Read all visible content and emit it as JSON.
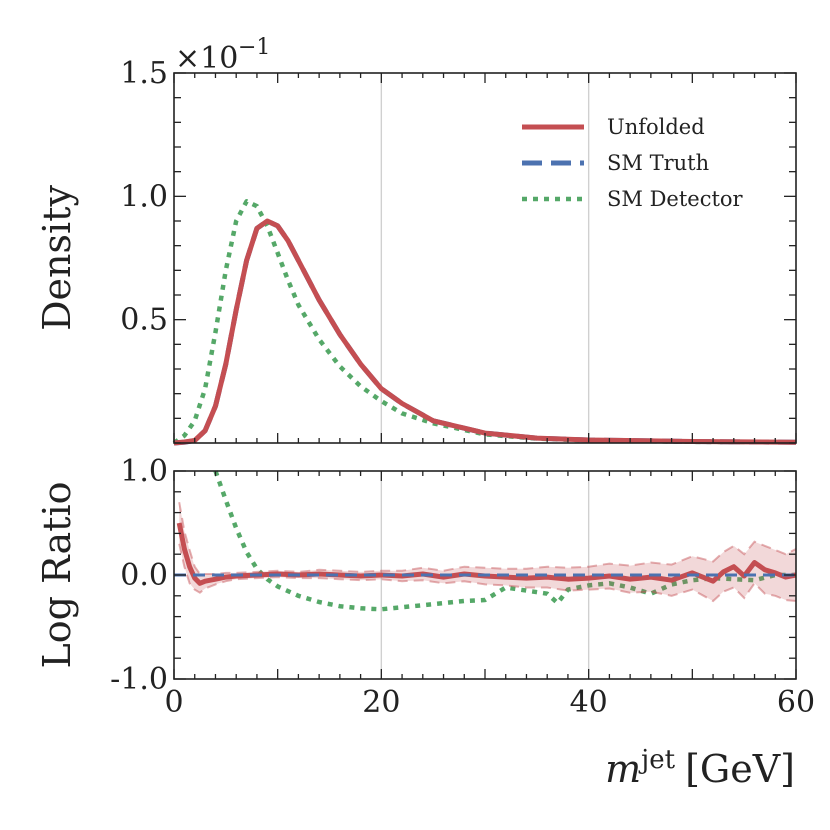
{
  "chart_data": [
    {
      "type": "line",
      "panel": "main",
      "ylabel": "Density",
      "xlim": [
        0,
        60
      ],
      "ylim": [
        0,
        1.5
      ],
      "scale_text": "×10",
      "scale_exponent": "−1",
      "yticks": [
        {
          "value": 0.5,
          "label": "0.5"
        },
        {
          "value": 1.0,
          "label": "1.0"
        },
        {
          "value": 1.5,
          "label": "1.5"
        }
      ],
      "grid_x": [
        20,
        40
      ],
      "legend": {
        "position": "top-right",
        "entries": [
          {
            "label": "Unfolded",
            "color": "#c44e52",
            "style": "solid"
          },
          {
            "label": "SM Truth",
            "color": "#4c72b0",
            "style": "dashed"
          },
          {
            "label": "SM Detector",
            "color": "#55a868",
            "style": "dotted"
          }
        ]
      },
      "series": [
        {
          "name": "SM Truth",
          "color": "#4c72b0",
          "style": "dashed",
          "x": [
            0,
            1,
            2,
            3,
            4,
            5,
            6,
            7,
            8,
            9,
            10,
            11,
            12,
            14,
            16,
            18,
            20,
            22,
            25,
            30,
            35,
            40,
            50,
            60
          ],
          "y": [
            0.0,
            0.003,
            0.01,
            0.05,
            0.15,
            0.32,
            0.54,
            0.74,
            0.87,
            0.9,
            0.88,
            0.82,
            0.74,
            0.58,
            0.44,
            0.32,
            0.22,
            0.16,
            0.09,
            0.04,
            0.02,
            0.012,
            0.006,
            0.003
          ]
        },
        {
          "name": "Unfolded",
          "color": "#c44e52",
          "style": "solid",
          "x": [
            0,
            1,
            2,
            3,
            4,
            5,
            6,
            7,
            8,
            9,
            10,
            11,
            12,
            14,
            16,
            18,
            20,
            22,
            25,
            30,
            35,
            40,
            50,
            60
          ],
          "y": [
            0.0,
            0.004,
            0.01,
            0.05,
            0.15,
            0.32,
            0.54,
            0.74,
            0.87,
            0.9,
            0.88,
            0.82,
            0.74,
            0.58,
            0.44,
            0.32,
            0.22,
            0.16,
            0.09,
            0.04,
            0.02,
            0.012,
            0.006,
            0.003
          ]
        },
        {
          "name": "SM Detector",
          "color": "#55a868",
          "style": "dotted",
          "x": [
            0,
            1,
            2,
            3,
            4,
            5,
            6,
            7,
            8,
            9,
            10,
            11,
            12,
            14,
            16,
            18,
            20,
            22,
            25,
            30,
            35,
            40,
            50,
            60
          ],
          "y": [
            0.0,
            0.03,
            0.09,
            0.22,
            0.45,
            0.7,
            0.9,
            0.98,
            0.96,
            0.88,
            0.77,
            0.66,
            0.56,
            0.42,
            0.31,
            0.23,
            0.17,
            0.12,
            0.08,
            0.035,
            0.018,
            0.01,
            0.005,
            0.003
          ]
        }
      ]
    },
    {
      "type": "line",
      "panel": "ratio",
      "ylabel": "Log Ratio",
      "xlabel_var": "m",
      "xlabel_sup": "jet",
      "xlabel_unit": "[GeV]",
      "xlim": [
        0,
        60
      ],
      "ylim": [
        -1,
        1
      ],
      "xticks": [
        {
          "value": 0,
          "label": "0"
        },
        {
          "value": 20,
          "label": "20"
        },
        {
          "value": 40,
          "label": "40"
        },
        {
          "value": 60,
          "label": "60"
        }
      ],
      "yticks": [
        {
          "value": -1,
          "label": "-1.0"
        },
        {
          "value": 0,
          "label": "0.0"
        },
        {
          "value": 1,
          "label": "1.0"
        }
      ],
      "grid_x": [
        20,
        40
      ],
      "series": [
        {
          "name": "SM Truth",
          "color": "#4c72b0",
          "style": "dashed",
          "x": [
            0,
            60
          ],
          "y": [
            0,
            0
          ]
        },
        {
          "name": "Unfolded",
          "color": "#c44e52",
          "style": "solid",
          "x": [
            0.5,
            1,
            1.5,
            2,
            2.5,
            3,
            4,
            5,
            6,
            8,
            10,
            12,
            14,
            16,
            18,
            20,
            22,
            24,
            26,
            28,
            30,
            32,
            34,
            36,
            38,
            40,
            42,
            44,
            46,
            48,
            50,
            52,
            53,
            54,
            55,
            56,
            57,
            58,
            59,
            60
          ],
          "y": [
            0.5,
            0.25,
            0.08,
            -0.03,
            -0.08,
            -0.06,
            -0.04,
            -0.02,
            -0.01,
            0.0,
            0.01,
            0.0,
            0.01,
            0.0,
            -0.01,
            0.0,
            -0.01,
            0.01,
            -0.02,
            0.01,
            -0.01,
            -0.02,
            -0.03,
            -0.02,
            -0.04,
            -0.03,
            -0.01,
            -0.04,
            -0.02,
            -0.05,
            0.02,
            -0.06,
            0.03,
            0.08,
            -0.01,
            0.12,
            0.05,
            0.02,
            -0.02,
            0.0
          ],
          "band_lower": [
            0.3,
            0.08,
            -0.08,
            -0.14,
            -0.17,
            -0.13,
            -0.09,
            -0.06,
            -0.04,
            -0.03,
            -0.02,
            -0.03,
            -0.03,
            -0.04,
            -0.05,
            -0.04,
            -0.06,
            -0.05,
            -0.08,
            -0.06,
            -0.09,
            -0.1,
            -0.12,
            -0.12,
            -0.15,
            -0.14,
            -0.13,
            -0.17,
            -0.16,
            -0.2,
            -0.14,
            -0.25,
            -0.16,
            -0.12,
            -0.22,
            -0.08,
            -0.18,
            -0.2,
            -0.24,
            -0.25
          ],
          "band_upper": [
            0.7,
            0.42,
            0.24,
            0.08,
            0.01,
            0.01,
            0.01,
            0.02,
            0.02,
            0.03,
            0.04,
            0.03,
            0.05,
            0.04,
            0.03,
            0.04,
            0.04,
            0.07,
            0.04,
            0.08,
            0.07,
            0.06,
            0.06,
            0.08,
            0.07,
            0.08,
            0.11,
            0.09,
            0.12,
            0.1,
            0.18,
            0.13,
            0.22,
            0.28,
            0.2,
            0.32,
            0.28,
            0.24,
            0.2,
            0.25
          ]
        },
        {
          "name": "SM Detector",
          "color": "#55a868",
          "style": "dotted",
          "x": [
            4,
            5,
            6,
            7,
            8,
            9,
            10,
            12,
            14,
            16,
            18,
            20,
            22,
            24,
            26,
            28,
            30,
            32,
            34,
            36,
            37,
            38,
            40,
            42,
            44,
            46,
            48,
            50,
            52,
            54,
            56,
            58,
            60
          ],
          "y": [
            1.0,
            0.72,
            0.45,
            0.22,
            0.06,
            -0.04,
            -0.11,
            -0.2,
            -0.26,
            -0.3,
            -0.32,
            -0.33,
            -0.31,
            -0.29,
            -0.27,
            -0.25,
            -0.24,
            -0.12,
            -0.15,
            -0.18,
            -0.27,
            -0.14,
            -0.1,
            -0.08,
            -0.12,
            -0.18,
            -0.09,
            -0.05,
            -0.03,
            -0.04,
            -0.05,
            0.0,
            0.0
          ]
        }
      ]
    }
  ]
}
